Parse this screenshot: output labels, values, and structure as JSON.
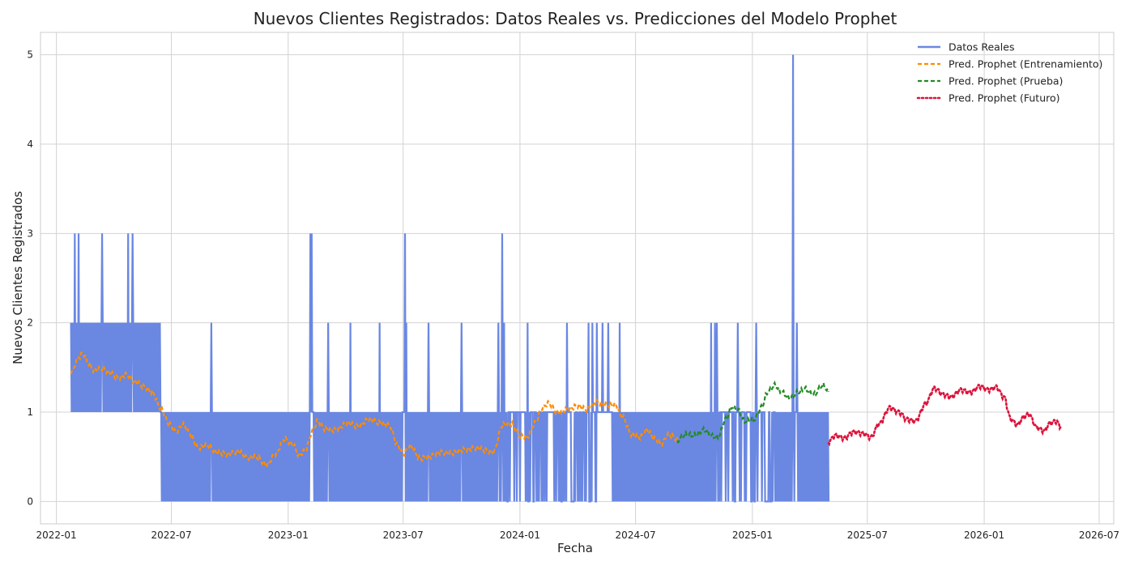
{
  "chart_data": {
    "type": "line",
    "title": "Nuevos Clientes Registrados: Datos Reales vs. Predicciones del Modelo Prophet",
    "xlabel": "Fecha",
    "ylabel": "Nuevos Clientes Registrados",
    "xlim": [
      "2021-12-07",
      "2026-07-24"
    ],
    "ylim": [
      -0.25,
      5.25
    ],
    "grid": true,
    "legend_position": "top-right",
    "x_ticks": [
      "2022-01-01",
      "2022-07-01",
      "2023-01-01",
      "2023-07-01",
      "2024-01-01",
      "2024-07-01",
      "2025-01-01",
      "2025-07-01",
      "2026-01-01",
      "2026-07-01"
    ],
    "x_tick_labels": [
      "2022-01",
      "2022-07",
      "2023-01",
      "2023-07",
      "2024-01",
      "2024-07",
      "2025-01",
      "2025-07",
      "2026-01",
      "2026-07"
    ],
    "y_ticks": [
      0,
      1,
      2,
      3,
      4,
      5
    ],
    "y_tick_labels": [
      "0",
      "1",
      "2",
      "3",
      "4",
      "5"
    ],
    "colors": {
      "actual": "#6a87e2",
      "train": "#ff8c00",
      "test": "#228b22",
      "future": "#dc143c",
      "grid": "#d3d3d3",
      "axis": "#cccccc"
    },
    "series": [
      {
        "name": "Datos Reales",
        "style": "solid",
        "color": "#6a87e2",
        "segments": [
          {
            "start": "2022-01-24",
            "end": "2022-06-14",
            "low": 1,
            "high": 2
          },
          {
            "start": "2022-06-15",
            "end": "2024-05-02",
            "low": 0,
            "high": 1
          },
          {
            "start": "2024-05-03",
            "end": "2024-05-25",
            "low": 1,
            "high": 1
          },
          {
            "start": "2024-05-26",
            "end": "2025-05-01",
            "low": 0,
            "high": 1
          }
        ],
        "gaps": [
          {
            "start": "2023-02-07",
            "end": "2023-02-09"
          },
          {
            "start": "2023-07-01",
            "end": "2023-07-03"
          },
          {
            "start": "2023-12-10",
            "end": "2024-05-02",
            "type": "sparse"
          },
          {
            "start": "2024-11-10",
            "end": "2025-02-05",
            "type": "sparse"
          },
          {
            "start": "2025-03-09",
            "end": "2025-03-12"
          }
        ],
        "spikes": [
          {
            "x": "2022-01-30",
            "y": 3
          },
          {
            "x": "2022-02-05",
            "y": 3
          },
          {
            "x": "2022-03-14",
            "y": 3
          },
          {
            "x": "2022-04-24",
            "y": 3
          },
          {
            "x": "2022-05-01",
            "y": 3
          },
          {
            "x": "2022-09-02",
            "y": 2
          },
          {
            "x": "2023-02-05",
            "y": 3
          },
          {
            "x": "2023-02-07",
            "y": 3
          },
          {
            "x": "2023-03-05",
            "y": 2
          },
          {
            "x": "2023-04-09",
            "y": 2
          },
          {
            "x": "2023-05-25",
            "y": 2
          },
          {
            "x": "2023-07-04",
            "y": 3
          },
          {
            "x": "2023-07-06",
            "y": 2
          },
          {
            "x": "2023-08-10",
            "y": 2
          },
          {
            "x": "2023-10-01",
            "y": 2
          },
          {
            "x": "2023-11-28",
            "y": 2
          },
          {
            "x": "2023-12-04",
            "y": 3
          },
          {
            "x": "2023-12-07",
            "y": 2
          },
          {
            "x": "2024-01-13",
            "y": 2
          },
          {
            "x": "2024-03-15",
            "y": 2
          },
          {
            "x": "2024-04-18",
            "y": 2
          },
          {
            "x": "2024-04-24",
            "y": 2
          },
          {
            "x": "2024-05-01",
            "y": 2
          },
          {
            "x": "2024-05-10",
            "y": 2
          },
          {
            "x": "2024-05-19",
            "y": 2
          },
          {
            "x": "2024-06-06",
            "y": 2
          },
          {
            "x": "2024-10-28",
            "y": 2
          },
          {
            "x": "2024-11-03",
            "y": 2
          },
          {
            "x": "2024-11-06",
            "y": 2
          },
          {
            "x": "2024-12-09",
            "y": 2
          },
          {
            "x": "2025-01-07",
            "y": 2
          },
          {
            "x": "2025-03-06",
            "y": 5
          },
          {
            "x": "2025-03-12",
            "y": 2
          }
        ]
      },
      {
        "name": "Pred. Prophet (Entrenamiento)",
        "style": "dashed",
        "color": "#ff8c00",
        "points": [
          [
            "2022-01-24",
            1.45
          ],
          [
            "2022-02-06",
            1.62
          ],
          [
            "2022-02-12",
            1.66
          ],
          [
            "2022-02-20",
            1.55
          ],
          [
            "2022-03-01",
            1.47
          ],
          [
            "2022-03-15",
            1.49
          ],
          [
            "2022-03-26",
            1.44
          ],
          [
            "2022-04-08",
            1.38
          ],
          [
            "2022-04-22",
            1.42
          ],
          [
            "2022-05-05",
            1.34
          ],
          [
            "2022-05-20",
            1.28
          ],
          [
            "2022-06-01",
            1.22
          ],
          [
            "2022-06-14",
            1.05
          ],
          [
            "2022-06-28",
            0.86
          ],
          [
            "2022-07-08",
            0.78
          ],
          [
            "2022-07-20",
            0.86
          ],
          [
            "2022-07-30",
            0.76
          ],
          [
            "2022-08-12",
            0.6
          ],
          [
            "2022-08-28",
            0.63
          ],
          [
            "2022-09-10",
            0.55
          ],
          [
            "2022-09-28",
            0.53
          ],
          [
            "2022-10-15",
            0.56
          ],
          [
            "2022-10-28",
            0.49
          ],
          [
            "2022-11-12",
            0.5
          ],
          [
            "2022-11-28",
            0.41
          ],
          [
            "2022-12-12",
            0.53
          ],
          [
            "2022-12-26",
            0.7
          ],
          [
            "2023-01-08",
            0.64
          ],
          [
            "2023-01-18",
            0.52
          ],
          [
            "2023-01-28",
            0.57
          ],
          [
            "2023-02-08",
            0.78
          ],
          [
            "2023-02-16",
            0.9
          ],
          [
            "2023-03-01",
            0.81
          ],
          [
            "2023-03-15",
            0.8
          ],
          [
            "2023-04-05",
            0.88
          ],
          [
            "2023-04-20",
            0.84
          ],
          [
            "2023-05-08",
            0.92
          ],
          [
            "2023-05-25",
            0.88
          ],
          [
            "2023-06-10",
            0.85
          ],
          [
            "2023-06-22",
            0.63
          ],
          [
            "2023-07-01",
            0.53
          ],
          [
            "2023-07-12",
            0.62
          ],
          [
            "2023-07-28",
            0.48
          ],
          [
            "2023-08-10",
            0.5
          ],
          [
            "2023-08-28",
            0.55
          ],
          [
            "2023-09-15",
            0.54
          ],
          [
            "2023-10-05",
            0.58
          ],
          [
            "2023-10-25",
            0.6
          ],
          [
            "2023-11-10",
            0.57
          ],
          [
            "2023-11-20",
            0.55
          ],
          [
            "2023-12-05",
            0.86
          ],
          [
            "2023-12-18",
            0.87
          ],
          [
            "2024-01-01",
            0.74
          ],
          [
            "2024-01-12",
            0.72
          ],
          [
            "2024-01-25",
            0.88
          ],
          [
            "2024-02-05",
            1.05
          ],
          [
            "2024-02-15",
            1.1
          ],
          [
            "2024-03-01",
            0.99
          ],
          [
            "2024-03-15",
            1.03
          ],
          [
            "2024-04-01",
            1.07
          ],
          [
            "2024-04-15",
            1.03
          ],
          [
            "2024-04-30",
            1.11
          ],
          [
            "2024-05-15",
            1.08
          ],
          [
            "2024-05-30",
            1.08
          ],
          [
            "2024-06-10",
            0.95
          ],
          [
            "2024-06-25",
            0.75
          ],
          [
            "2024-07-08",
            0.72
          ],
          [
            "2024-07-18",
            0.8
          ],
          [
            "2024-08-01",
            0.7
          ],
          [
            "2024-08-10",
            0.64
          ],
          [
            "2024-08-22",
            0.75
          ],
          [
            "2024-09-05",
            0.7
          ]
        ]
      },
      {
        "name": "Pred. Prophet (Prueba)",
        "style": "dashed",
        "color": "#228b22",
        "points": [
          [
            "2024-09-05",
            0.68
          ],
          [
            "2024-09-18",
            0.75
          ],
          [
            "2024-10-01",
            0.74
          ],
          [
            "2024-10-18",
            0.8
          ],
          [
            "2024-10-30",
            0.73
          ],
          [
            "2024-11-08",
            0.72
          ],
          [
            "2024-11-20",
            0.92
          ],
          [
            "2024-11-30",
            1.06
          ],
          [
            "2024-12-08",
            1.03
          ],
          [
            "2024-12-20",
            0.9
          ],
          [
            "2025-01-05",
            0.92
          ],
          [
            "2025-01-15",
            1.05
          ],
          [
            "2025-01-25",
            1.22
          ],
          [
            "2025-02-05",
            1.3
          ],
          [
            "2025-02-16",
            1.22
          ],
          [
            "2025-03-01",
            1.16
          ],
          [
            "2025-03-14",
            1.22
          ],
          [
            "2025-03-24",
            1.26
          ],
          [
            "2025-04-08",
            1.2
          ],
          [
            "2025-04-22",
            1.3
          ],
          [
            "2025-05-01",
            1.23
          ]
        ]
      },
      {
        "name": "Pred. Prophet (Futuro)",
        "style": "dotted",
        "color": "#dc143c",
        "points": [
          [
            "2025-05-01",
            0.67
          ],
          [
            "2025-05-12",
            0.74
          ],
          [
            "2025-05-25",
            0.71
          ],
          [
            "2025-06-10",
            0.78
          ],
          [
            "2025-06-25",
            0.76
          ],
          [
            "2025-07-06",
            0.72
          ],
          [
            "2025-07-20",
            0.87
          ],
          [
            "2025-08-05",
            1.05
          ],
          [
            "2025-08-20",
            1.0
          ],
          [
            "2025-09-01",
            0.92
          ],
          [
            "2025-09-15",
            0.9
          ],
          [
            "2025-10-01",
            1.1
          ],
          [
            "2025-10-15",
            1.27
          ],
          [
            "2025-10-28",
            1.2
          ],
          [
            "2025-11-10",
            1.17
          ],
          [
            "2025-11-25",
            1.25
          ],
          [
            "2025-12-10",
            1.22
          ],
          [
            "2025-12-25",
            1.29
          ],
          [
            "2026-01-08",
            1.25
          ],
          [
            "2026-01-20",
            1.28
          ],
          [
            "2026-02-01",
            1.17
          ],
          [
            "2026-02-12",
            0.92
          ],
          [
            "2026-02-22",
            0.86
          ],
          [
            "2026-03-05",
            0.95
          ],
          [
            "2026-03-12",
            0.98
          ],
          [
            "2026-03-25",
            0.83
          ],
          [
            "2026-04-05",
            0.79
          ],
          [
            "2026-04-15",
            0.88
          ],
          [
            "2026-04-25",
            0.9
          ],
          [
            "2026-05-01",
            0.83
          ]
        ]
      }
    ]
  }
}
